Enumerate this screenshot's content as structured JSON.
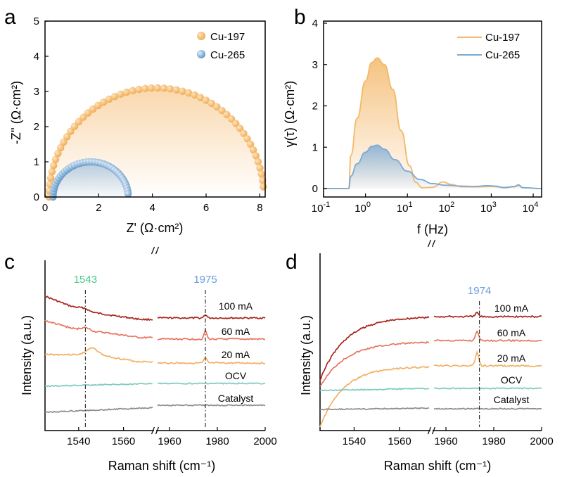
{
  "panels": {
    "a": {
      "letter": "a",
      "chart_data": {
        "type": "scatter",
        "xlabel": "Z' (Ω·cm²)",
        "ylabel": "-Z'' (Ω·cm²)",
        "xlim": [
          0,
          8.2
        ],
        "ylim": [
          0,
          5
        ],
        "xticks": [
          "0",
          "2",
          "4",
          "6",
          "8"
        ],
        "yticks": [
          "0",
          "1",
          "2",
          "3",
          "4",
          "5"
        ],
        "legend": [
          {
            "name": "Cu-197",
            "color": "#f4b86a"
          },
          {
            "name": "Cu-265",
            "color": "#7aaad6"
          }
        ],
        "series": [
          {
            "name": "Cu-197",
            "color": "#f4b86a",
            "fill": "#fbe2c6",
            "center": 4.15,
            "radius": 4.0,
            "peak": 3.1,
            "end": 8.15,
            "points": 52
          },
          {
            "name": "Cu-265",
            "color": "#7aaad6",
            "fill": "#cfe1f1",
            "center": 1.7,
            "radius": 1.4,
            "peak": 1.0,
            "end": 3.05,
            "points": 38
          }
        ]
      }
    },
    "b": {
      "letter": "b",
      "chart_data": {
        "type": "line",
        "xlabel": "f (Hz)",
        "ylabel": "γ(τ) (Ω·cm²)",
        "xscale": "log",
        "xlim_log10": [
          -1,
          4.2
        ],
        "ylim": [
          0,
          4
        ],
        "xticks": [
          {
            "base": "10",
            "exp": "-1",
            "log": -1
          },
          {
            "base": "10",
            "exp": "0",
            "log": 0
          },
          {
            "base": "10",
            "exp": "1",
            "log": 1
          },
          {
            "base": "10",
            "exp": "2",
            "log": 2
          },
          {
            "base": "10",
            "exp": "3",
            "log": 3
          },
          {
            "base": "10",
            "exp": "4",
            "log": 4
          }
        ],
        "yticks": [
          "0",
          "1",
          "2",
          "3",
          "4"
        ],
        "legend": [
          {
            "name": "Cu-197",
            "color": "#f4b86a"
          },
          {
            "name": "Cu-265",
            "color": "#7aaad6"
          }
        ],
        "series": [
          {
            "name": "Cu-197",
            "color": "#f4b86a",
            "fill": "#fbd9b3",
            "points": [
              [
                -1,
                0
              ],
              [
                -0.4,
                0
              ],
              [
                -0.35,
                0.8
              ],
              [
                -0.2,
                1.7
              ],
              [
                0,
                2.6
              ],
              [
                0.15,
                3.05
              ],
              [
                0.28,
                3.16
              ],
              [
                0.45,
                3.0
              ],
              [
                0.65,
                2.4
              ],
              [
                0.85,
                1.4
              ],
              [
                1.05,
                0.55
              ],
              [
                1.2,
                0.15
              ],
              [
                1.35,
                0.02
              ],
              [
                1.6,
                0.03
              ],
              [
                1.85,
                0.16
              ],
              [
                2.05,
                0.1
              ],
              [
                2.3,
                0.04
              ],
              [
                2.6,
                0.04
              ],
              [
                3.0,
                0.05
              ],
              [
                3.3,
                0.03
              ],
              [
                3.55,
                0.04
              ],
              [
                3.65,
                0.07
              ],
              [
                3.75,
                0.02
              ],
              [
                4.2,
                0
              ]
            ]
          },
          {
            "name": "Cu-265",
            "color": "#7aaad6",
            "fill": "#c7dcef",
            "points": [
              [
                -1,
                0
              ],
              [
                -0.4,
                0
              ],
              [
                -0.35,
                0.3
              ],
              [
                -0.2,
                0.6
              ],
              [
                0,
                0.88
              ],
              [
                0.15,
                1.02
              ],
              [
                0.28,
                1.05
              ],
              [
                0.45,
                0.95
              ],
              [
                0.7,
                0.7
              ],
              [
                1.0,
                0.42
              ],
              [
                1.3,
                0.22
              ],
              [
                1.6,
                0.12
              ],
              [
                1.9,
                0.08
              ],
              [
                2.3,
                0.06
              ],
              [
                2.6,
                0.05
              ],
              [
                2.9,
                0.07
              ],
              [
                3.1,
                0.06
              ],
              [
                3.3,
                0.02
              ],
              [
                3.55,
                0.05
              ],
              [
                3.65,
                0.09
              ],
              [
                3.75,
                0.02
              ],
              [
                4.2,
                0
              ]
            ]
          }
        ]
      }
    },
    "c": {
      "letter": "c",
      "chart_data": {
        "type": "line",
        "xlabel": "Raman shift (cm⁻¹)",
        "ylabel": "Intensity (a.u.)",
        "broken_axis": {
          "left": [
            1525,
            1573
          ],
          "right": [
            1955,
            2000
          ]
        },
        "xticks_left": [
          "1540",
          "1560"
        ],
        "xticks_right": [
          "1960",
          "1980",
          "2000"
        ],
        "peak_labels": [
          {
            "text": "1543",
            "position": 1543,
            "color": "#4dc98a"
          },
          {
            "text": "1975",
            "position": 1975,
            "color": "#6a9be0"
          }
        ],
        "series": [
          {
            "name": "100 mA",
            "color": "#a8251d"
          },
          {
            "name": "60 mA",
            "color": "#e8735f"
          },
          {
            "name": "20 mA",
            "color": "#f2b063"
          },
          {
            "name": "OCV",
            "color": "#7ecbbf"
          },
          {
            "name": "Catalyst",
            "color": "#8c8c8c"
          }
        ]
      }
    },
    "d": {
      "letter": "d",
      "chart_data": {
        "type": "line",
        "xlabel": "Raman shift (cm⁻¹)",
        "ylabel": "Intensity (a.u.)",
        "broken_axis": {
          "left": [
            1525,
            1573
          ],
          "right": [
            1955,
            2000
          ]
        },
        "xticks_left": [
          "1540",
          "1560"
        ],
        "xticks_right": [
          "1960",
          "1980",
          "2000"
        ],
        "peak_labels": [
          {
            "text": "1974",
            "position": 1974,
            "color": "#6a9be0"
          }
        ],
        "series": [
          {
            "name": "100 mA",
            "color": "#a8251d"
          },
          {
            "name": "60 mA",
            "color": "#e8735f"
          },
          {
            "name": "20 mA",
            "color": "#f2b063"
          },
          {
            "name": "OCV",
            "color": "#7ecbbf"
          },
          {
            "name": "Catalyst",
            "color": "#8c8c8c"
          }
        ]
      }
    }
  }
}
